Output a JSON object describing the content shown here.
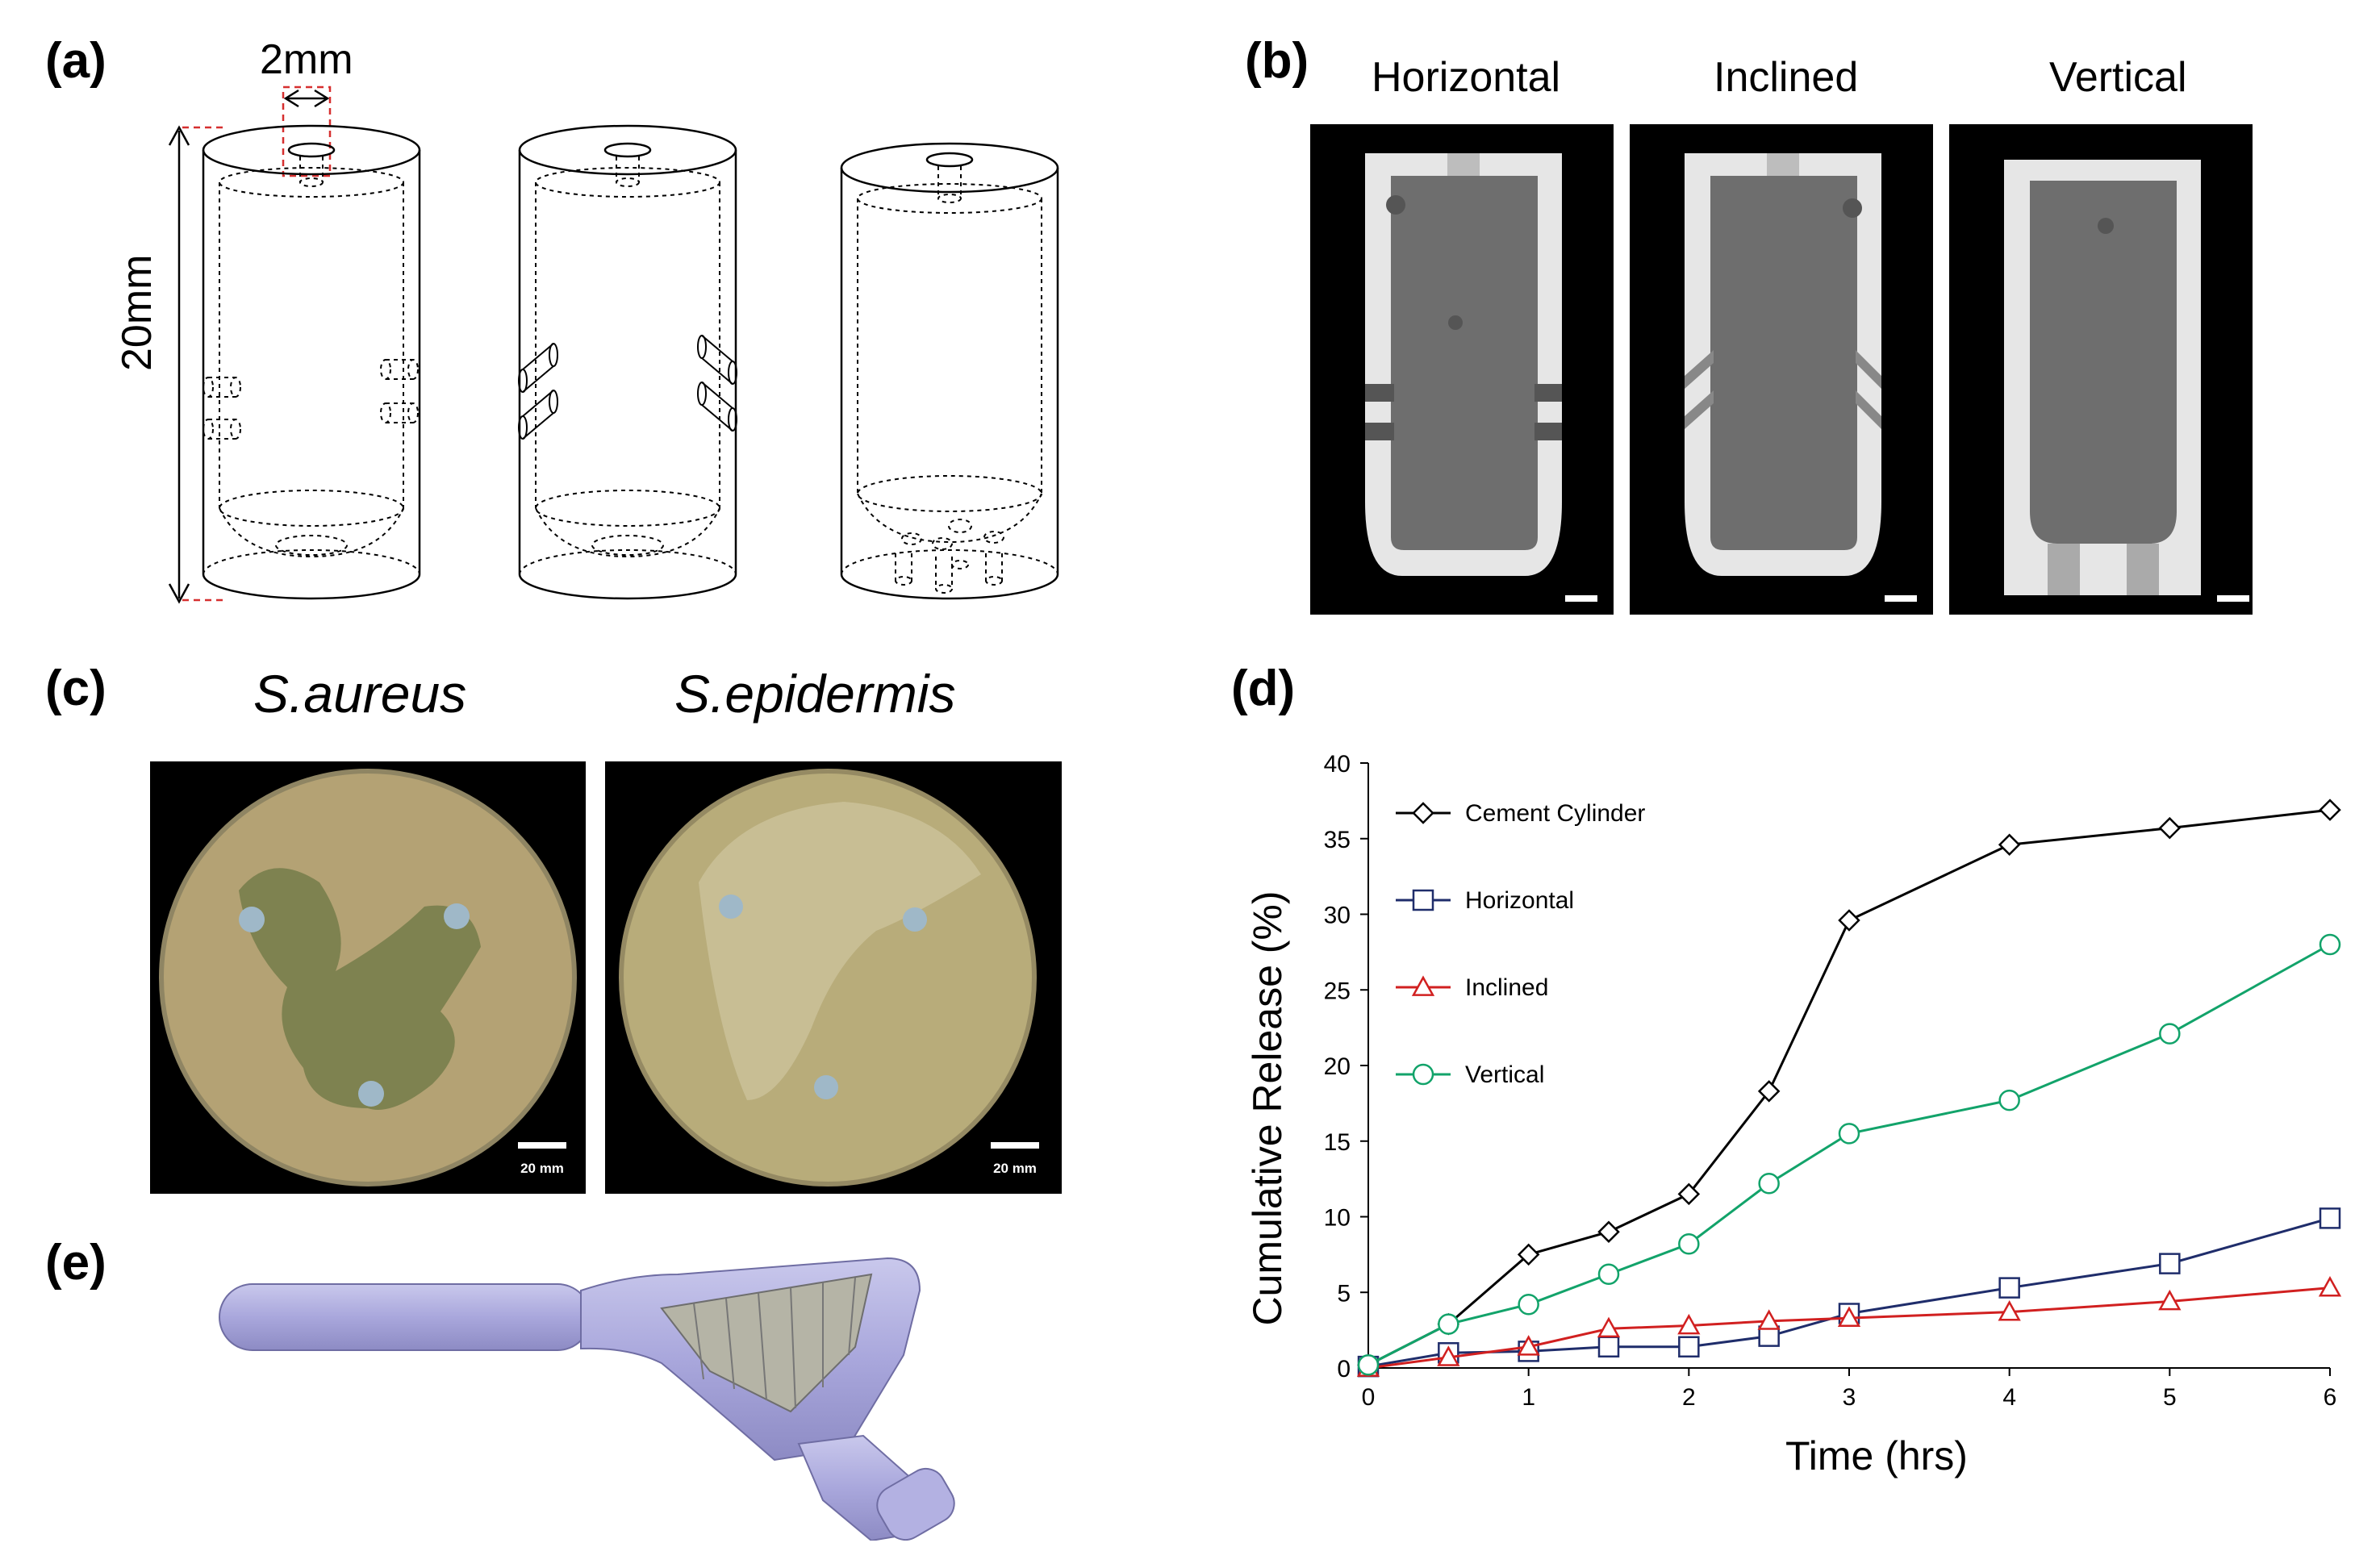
{
  "figure": {
    "panel_a": {
      "label": "(a)",
      "diameter_label": "2mm",
      "height_label": "20mm"
    },
    "panel_b": {
      "label": "(b)",
      "titles": [
        "Horizontal",
        "Inclined",
        "Vertical"
      ]
    },
    "panel_c": {
      "label": "(c)",
      "titles": [
        "S.aureus",
        "S.epidermis"
      ],
      "scale_labels": [
        "20 mm",
        "20 mm"
      ]
    },
    "panel_d": {
      "label": "(d)"
    },
    "panel_e": {
      "label": "(e)"
    }
  },
  "chart_data": {
    "type": "line",
    "title": "",
    "xlabel": "Time (hrs)",
    "ylabel": "Cumulative Release (%)",
    "xlim": [
      0,
      6
    ],
    "ylim": [
      0,
      40
    ],
    "x_ticks": [
      0,
      1,
      2,
      3,
      4,
      5,
      6
    ],
    "y_ticks": [
      0,
      5,
      10,
      15,
      20,
      25,
      30,
      35,
      40
    ],
    "x_tick_labels": [
      "0",
      "1",
      "2",
      "3",
      "4",
      "5",
      "6"
    ],
    "y_tick_labels": [
      "0",
      "5",
      "10",
      "15",
      "20",
      "25",
      "30",
      "35",
      "40"
    ],
    "grid": false,
    "legend": "top-left",
    "series": [
      {
        "name": "Cement Cylinder",
        "color": "#000000",
        "marker": "diamond",
        "x": [
          0,
          0.5,
          1,
          1.5,
          2,
          2.5,
          3,
          4,
          5,
          6
        ],
        "y": [
          0.2,
          2.9,
          7.5,
          9.0,
          11.5,
          18.3,
          29.6,
          34.6,
          35.7,
          36.9
        ]
      },
      {
        "name": "Horizontal",
        "color": "#1f2d6b",
        "marker": "square",
        "x": [
          0,
          0.5,
          1,
          1.5,
          2,
          2.5,
          3,
          4,
          5,
          6
        ],
        "y": [
          0.1,
          1.0,
          1.1,
          1.4,
          1.4,
          2.1,
          3.6,
          5.3,
          6.9,
          9.9
        ]
      },
      {
        "name": "Inclined",
        "color": "#d12020",
        "marker": "triangle",
        "x": [
          0,
          0.5,
          1,
          1.5,
          2,
          2.5,
          3,
          4,
          5,
          6
        ],
        "y": [
          0.0,
          0.7,
          1.4,
          2.6,
          2.8,
          3.1,
          3.3,
          3.7,
          4.4,
          5.3
        ]
      },
      {
        "name": "Vertical",
        "color": "#12a36a",
        "marker": "circle",
        "x": [
          0,
          0.5,
          1,
          1.5,
          2,
          2.5,
          3,
          4,
          5,
          6
        ],
        "y": [
          0.2,
          2.9,
          4.2,
          6.2,
          8.2,
          12.2,
          15.5,
          17.7,
          22.1,
          28.0
        ]
      }
    ]
  }
}
